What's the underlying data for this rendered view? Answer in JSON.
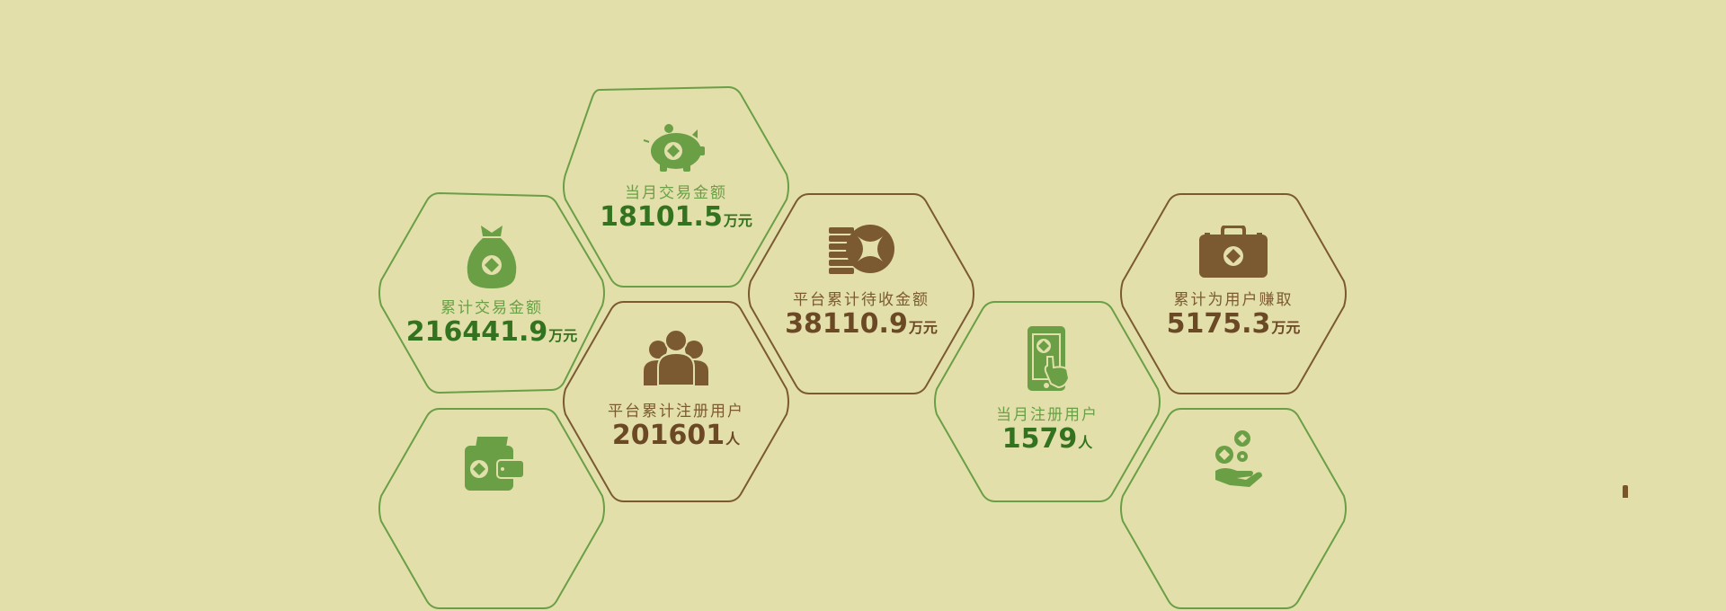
{
  "colors": {
    "background": "#e2dfab",
    "green_accent": "#6a9f45",
    "green_value": "#33731f",
    "brown_accent": "#7b5a31",
    "brown_value": "#6a4924"
  },
  "stats": {
    "monthly_volume": {
      "label": "当月交易金额",
      "value": "18101.5",
      "unit": "万元",
      "icon": "piggy-bank-icon"
    },
    "total_volume": {
      "label": "累计交易金额",
      "value": "216441.9",
      "unit": "万元",
      "icon": "money-bag-icon"
    },
    "pending_collection": {
      "label": "平台累计待收金额",
      "value": "38110.9",
      "unit": "万元",
      "icon": "coin-stack-icon"
    },
    "total_earnings": {
      "label": "累计为用户赚取",
      "value": "5175.3",
      "unit": "万元",
      "icon": "briefcase-icon"
    },
    "registered_users": {
      "label": "平台累计注册用户",
      "value": "201601",
      "unit": "人",
      "icon": "users-group-icon"
    },
    "monthly_registrations": {
      "label": "当月注册用户",
      "value": "1579",
      "unit": "人",
      "icon": "phone-touch-icon"
    },
    "wallet_partial": {
      "icon": "wallet-icon"
    },
    "coins_hand_partial": {
      "icon": "hand-coins-icon"
    }
  }
}
